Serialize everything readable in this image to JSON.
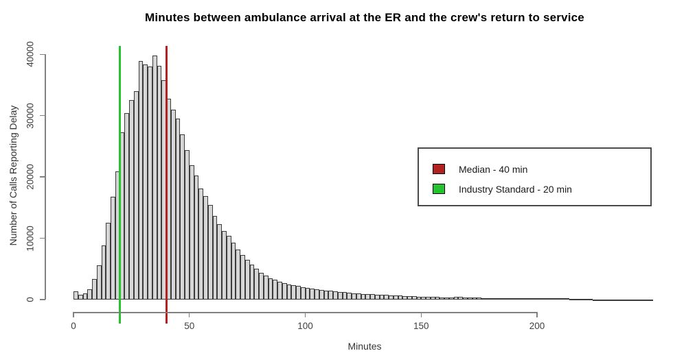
{
  "title": "Minutes between ambulance arrival at the ER and the crew's return to service",
  "axes": {
    "x": {
      "label": "Minutes",
      "ticks": [
        0,
        50,
        100,
        150,
        200
      ]
    },
    "y": {
      "label": "Number of Calls Reporting Delay",
      "ticks": [
        0,
        10000,
        20000,
        30000,
        40000
      ]
    }
  },
  "legend": {
    "items": [
      {
        "label": "Median - 40 min",
        "color": "#B22222"
      },
      {
        "label": "Industry Standard - 20 min",
        "color": "#26C32F"
      }
    ]
  },
  "chart_data": {
    "type": "bar",
    "subtype": "histogram",
    "title": "Minutes between ambulance arrival at the ER and the crew's return to service",
    "xlabel": "Minutes",
    "ylabel": "Number of Calls Reporting Delay",
    "xlim": [
      0,
      250
    ],
    "ylim": [
      0,
      40000
    ],
    "x_ticks": [
      0,
      50,
      100,
      150,
      200
    ],
    "y_ticks": [
      0,
      10000,
      20000,
      30000,
      40000
    ],
    "grid": false,
    "bar_fill": "#d6d6d6",
    "bar_border": "#3a3a3a",
    "bin_width": 2,
    "bin_start": 0,
    "counts": [
      1300,
      800,
      1000,
      1700,
      3300,
      5600,
      8800,
      12500,
      16800,
      20900,
      27300,
      30400,
      32500,
      34000,
      38900,
      38400,
      38000,
      39800,
      38100,
      35800,
      32800,
      31000,
      29500,
      26900,
      24400,
      21900,
      20200,
      18100,
      16900,
      15400,
      13600,
      12300,
      11200,
      10400,
      9300,
      8200,
      7300,
      6500,
      5700,
      5000,
      4400,
      3900,
      3500,
      3200,
      2950,
      2700,
      2500,
      2350,
      2200,
      2050,
      1900,
      1800,
      1700,
      1600,
      1500,
      1400,
      1350,
      1250,
      1200,
      1100,
      1050,
      1000,
      950,
      900,
      850,
      800,
      780,
      730,
      700,
      660,
      620,
      590,
      560,
      530,
      500,
      480,
      450,
      430,
      410,
      390,
      370,
      350,
      430,
      400,
      330,
      310,
      300,
      290,
      280,
      270,
      260,
      250,
      240,
      230,
      220,
      210,
      200,
      195,
      190,
      185,
      180,
      175,
      170,
      260,
      250,
      240,
      230,
      100,
      90,
      80,
      70,
      60,
      50,
      45,
      40,
      35,
      30,
      28,
      25,
      22,
      20,
      18,
      15,
      12,
      10
    ],
    "reference_lines": [
      {
        "x": 40,
        "color": "#B22222",
        "label": "Median - 40 min"
      },
      {
        "x": 20,
        "color": "#26C32F",
        "label": "Industry Standard - 20 min"
      }
    ],
    "legend_position": "right-middle"
  }
}
